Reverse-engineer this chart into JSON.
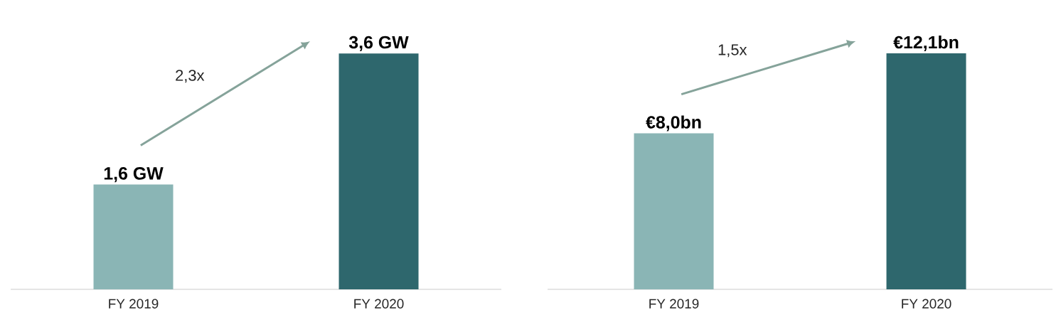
{
  "chart_data": [
    {
      "type": "bar",
      "categories": [
        "FY 2019",
        "FY 2020"
      ],
      "values": [
        1.6,
        3.6
      ],
      "colors": [
        "#8ab5b5",
        "#2e676d"
      ],
      "value_labels": [
        "1,6 GW",
        "3,6 GW"
      ],
      "annotations": [
        "2,3x"
      ]
    },
    {
      "type": "bar",
      "categories": [
        "FY 2019",
        "FY 2020"
      ],
      "values": [
        8.0,
        12.1
      ],
      "colors": [
        "#8ab5b5",
        "#2e676d"
      ],
      "value_labels": [
        "€8,0bn",
        "€12,1bn"
      ],
      "annotations": [
        "1,5x"
      ]
    }
  ]
}
